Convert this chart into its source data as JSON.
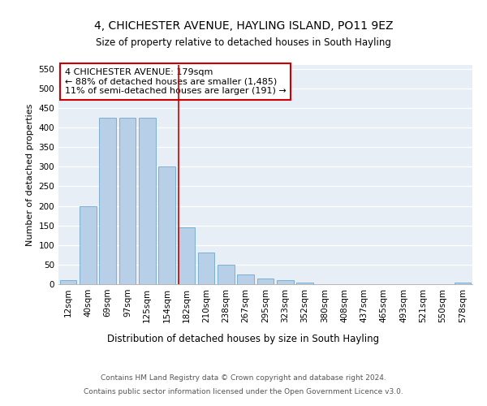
{
  "title1": "4, CHICHESTER AVENUE, HAYLING ISLAND, PO11 9EZ",
  "title2": "Size of property relative to detached houses in South Hayling",
  "xlabel": "Distribution of detached houses by size in South Hayling",
  "ylabel": "Number of detached properties",
  "categories": [
    "12sqm",
    "40sqm",
    "69sqm",
    "97sqm",
    "125sqm",
    "154sqm",
    "182sqm",
    "210sqm",
    "238sqm",
    "267sqm",
    "295sqm",
    "323sqm",
    "352sqm",
    "380sqm",
    "408sqm",
    "437sqm",
    "465sqm",
    "493sqm",
    "521sqm",
    "550sqm",
    "578sqm"
  ],
  "values": [
    10,
    200,
    425,
    425,
    425,
    300,
    145,
    80,
    50,
    25,
    15,
    10,
    5,
    0,
    0,
    0,
    0,
    0,
    0,
    0,
    5
  ],
  "bar_color": "#b8cfe8",
  "bar_edgecolor": "#6fa8d0",
  "bar_linewidth": 0.6,
  "vline_index": 6,
  "vline_color": "#cc0000",
  "vline_linewidth": 1.2,
  "annotation_text": "4 CHICHESTER AVENUE: 179sqm\n← 88% of detached houses are smaller (1,485)\n11% of semi-detached houses are larger (191) →",
  "annotation_box_facecolor": "#ffffff",
  "annotation_box_edgecolor": "#cc0000",
  "ylim": [
    0,
    560
  ],
  "yticks": [
    0,
    50,
    100,
    150,
    200,
    250,
    300,
    350,
    400,
    450,
    500,
    550
  ],
  "bg_color": "#e8eef5",
  "footer1": "Contains HM Land Registry data © Crown copyright and database right 2024.",
  "footer2": "Contains public sector information licensed under the Open Government Licence v3.0.",
  "title1_fontsize": 10,
  "title2_fontsize": 8.5,
  "xlabel_fontsize": 8.5,
  "ylabel_fontsize": 8,
  "tick_fontsize": 7.5,
  "annotation_fontsize": 8,
  "footer_fontsize": 6.5
}
